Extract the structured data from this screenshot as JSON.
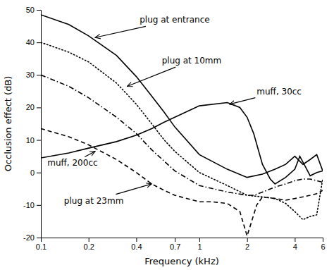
{
  "chart_data": {
    "type": "line",
    "xlabel": "Frequency (kHz)",
    "ylabel": "Occlusion effect (dB)",
    "log": "x",
    "xlim": [
      0.1,
      6.0
    ],
    "ylim": [
      -20,
      50
    ],
    "xticks": [
      0.1,
      0.2,
      0.4,
      0.7,
      1,
      2,
      4,
      6
    ],
    "yticks": [
      -20,
      -10,
      0,
      10,
      20,
      30,
      40,
      50
    ],
    "series": [
      {
        "color": "#000000",
        "line_style": "solid",
        "x": [
          0.1,
          0.15,
          0.2,
          0.3,
          0.4,
          0.5,
          0.6,
          0.7,
          1.0,
          1.5,
          2.0,
          2.5,
          3.0,
          3.5,
          4.0,
          4.5,
          5.0,
          5.5,
          6.0
        ],
        "values": [
          48.5,
          45.5,
          42.0,
          36.0,
          29.5,
          23.5,
          18.5,
          14.0,
          5.5,
          1.0,
          -1.5,
          -0.5,
          1.0,
          2.5,
          5.0,
          2.5,
          4.0,
          5.5,
          0.5
        ]
      },
      {
        "color": "#000000",
        "line_style": "dotted",
        "x": [
          0.1,
          0.15,
          0.2,
          0.3,
          0.4,
          0.5,
          0.6,
          0.7,
          1.0,
          1.5,
          2.0,
          2.5,
          3.0,
          3.5,
          4.0,
          4.5,
          5.0,
          5.5,
          6.0
        ],
        "values": [
          40.0,
          37.0,
          34.0,
          27.5,
          21.0,
          15.0,
          10.0,
          6.5,
          0.0,
          -4.0,
          -7.0,
          -7.5,
          -8.0,
          -9.5,
          -12.0,
          -14.5,
          -13.5,
          -13.0,
          -2.0
        ]
      },
      {
        "color": "#000000",
        "line_style": "solid",
        "x": [
          0.1,
          0.15,
          0.2,
          0.3,
          0.4,
          0.5,
          0.6,
          0.7,
          1.0,
          1.5,
          1.8,
          2.0,
          2.2,
          2.5,
          2.8,
          3.0,
          3.5,
          4.0,
          4.3,
          4.7,
          5.0,
          5.5,
          6.0
        ],
        "values": [
          4.5,
          6.0,
          7.5,
          9.5,
          11.5,
          13.5,
          15.5,
          17.0,
          20.5,
          21.5,
          20.0,
          17.0,
          12.0,
          2.5,
          -2.0,
          -3.5,
          -1.5,
          1.0,
          5.0,
          1.5,
          -1.0,
          0.0,
          0.5
        ]
      },
      {
        "color": "#000000",
        "line_style": "dashdot",
        "x": [
          0.1,
          0.15,
          0.2,
          0.3,
          0.4,
          0.5,
          0.6,
          0.7,
          1.0,
          1.5,
          2.0,
          2.2,
          2.5,
          3.0,
          3.5,
          4.0,
          4.5,
          5.0,
          5.5,
          6.0
        ],
        "values": [
          30.0,
          26.5,
          23.0,
          17.0,
          12.0,
          7.0,
          3.5,
          0.5,
          -4.0,
          -6.0,
          -7.0,
          -7.0,
          -6.0,
          -4.5,
          -3.5,
          -2.5,
          -2.0,
          -2.0,
          -2.5,
          -3.0
        ]
      },
      {
        "color": "#000000",
        "line_style": "dashed",
        "x": [
          0.1,
          0.15,
          0.2,
          0.3,
          0.4,
          0.5,
          0.6,
          0.7,
          1.0,
          1.2,
          1.5,
          1.8,
          2.0,
          2.3,
          2.5,
          3.0,
          3.5,
          4.0,
          4.5,
          5.0,
          5.5,
          6.0
        ],
        "values": [
          13.5,
          11.0,
          8.5,
          4.0,
          0.0,
          -3.5,
          -5.5,
          -7.0,
          -9.0,
          -9.0,
          -9.5,
          -12.0,
          -19.5,
          -10.0,
          -7.5,
          -8.0,
          -8.5,
          -8.0,
          -7.5,
          -7.0,
          -6.5,
          -5.5
        ]
      }
    ],
    "annotations": [
      {
        "text": "plug at entrance",
        "xy": [
          0.22,
          41.5
        ],
        "xytext": [
          0.42,
          46.0
        ]
      },
      {
        "text": "plug at 10mm",
        "xy": [
          0.35,
          26.5
        ],
        "xytext": [
          0.58,
          33.5
        ]
      },
      {
        "text": "muff, 30cc",
        "xy": [
          1.55,
          21.0
        ],
        "xytext": [
          2.3,
          24.0
        ]
      },
      {
        "text": "muff, 200cc",
        "xy": [
          0.22,
          6.5
        ],
        "xytext": [
          0.11,
          2.0
        ]
      },
      {
        "text": "plug at 23mm",
        "xy": [
          0.5,
          -3.5
        ],
        "xytext": [
          0.14,
          -9.5
        ]
      }
    ]
  }
}
